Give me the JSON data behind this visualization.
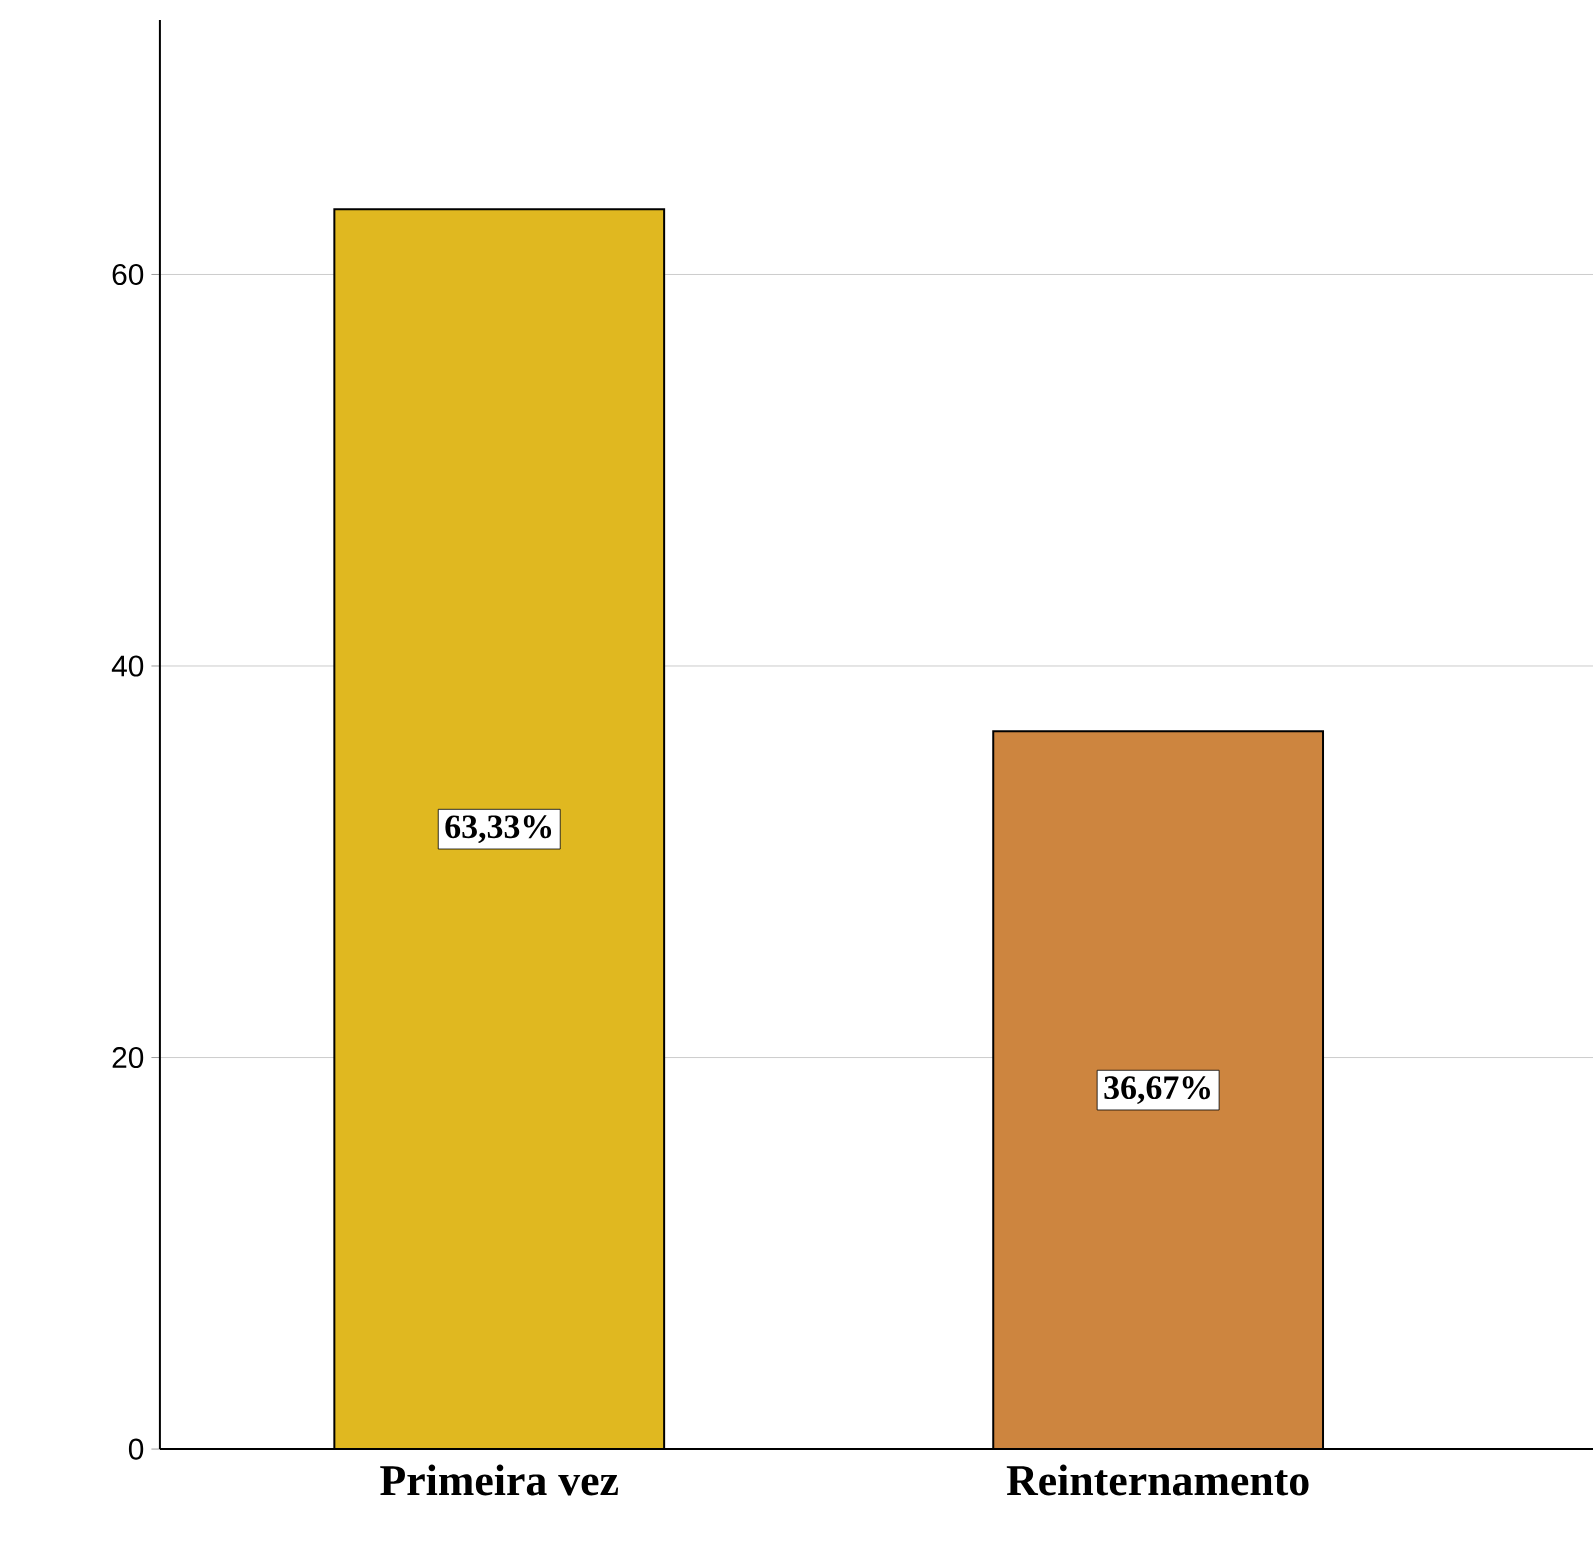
{
  "chart_data": {
    "type": "bar",
    "categories": [
      "Primeira vez",
      "Reinternamento"
    ],
    "values": [
      63.33,
      36.67
    ],
    "value_labels": [
      "63,33%",
      "36,67%"
    ],
    "colors": [
      "#e0b820",
      "#cd853f"
    ],
    "ylim": [
      0,
      73
    ],
    "yticks": [
      0,
      20,
      40,
      60
    ],
    "grid": "y"
  }
}
